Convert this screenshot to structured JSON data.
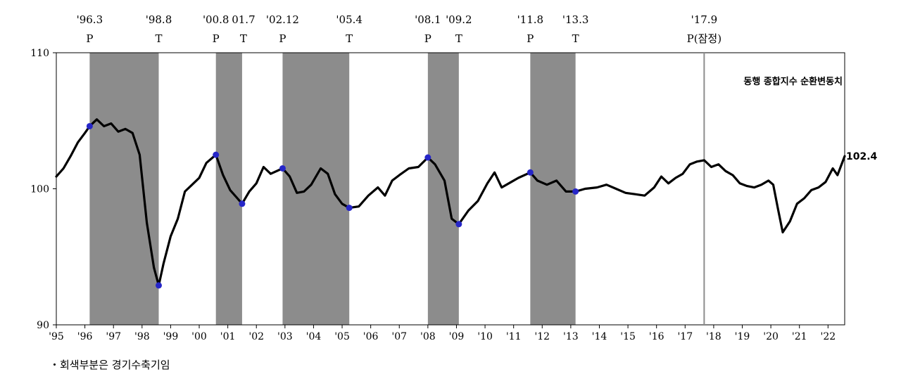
{
  "chart_data": {
    "type": "line",
    "ylim": [
      90,
      110
    ],
    "yticks": [
      "110",
      "100",
      "90"
    ],
    "x_range": [
      "1995-01",
      "2022-08"
    ],
    "xticks": [
      "'95",
      "'96",
      "'97",
      "'98",
      "'99",
      "'00",
      "'01",
      "'02",
      "'03",
      "'04",
      "'05",
      "'06",
      "'07",
      "'08",
      "'09",
      "'10",
      "'11",
      "'12",
      "'13",
      "'14",
      "'15",
      "'16",
      "'17",
      "'18",
      "'19",
      "'20",
      "'21",
      "'22"
    ],
    "series": [
      {
        "name": "동행 종합지수 순환변동치",
        "last_value_label": "102.4",
        "points": [
          [
            "1995-01",
            100.9
          ],
          [
            "1995-04",
            101.5
          ],
          [
            "1995-07",
            102.4
          ],
          [
            "1995-10",
            103.4
          ],
          [
            "1996-01",
            104.1
          ],
          [
            "1996-03",
            104.6
          ],
          [
            "1996-06",
            105.1
          ],
          [
            "1996-09",
            104.6
          ],
          [
            "1996-12",
            104.8
          ],
          [
            "1997-03",
            104.2
          ],
          [
            "1997-06",
            104.4
          ],
          [
            "1997-09",
            104.1
          ],
          [
            "1997-12",
            102.5
          ],
          [
            "1998-03",
            97.5
          ],
          [
            "1998-06",
            94.2
          ],
          [
            "1998-08",
            92.9
          ],
          [
            "1998-10",
            94.5
          ],
          [
            "1999-01",
            96.5
          ],
          [
            "1999-04",
            97.8
          ],
          [
            "1999-07",
            99.8
          ],
          [
            "1999-10",
            100.3
          ],
          [
            "2000-01",
            100.8
          ],
          [
            "2000-04",
            101.9
          ],
          [
            "2000-08",
            102.5
          ],
          [
            "2000-11",
            101.0
          ],
          [
            "2001-02",
            99.9
          ],
          [
            "2001-05",
            99.3
          ],
          [
            "2001-07",
            98.9
          ],
          [
            "2001-10",
            99.8
          ],
          [
            "2002-01",
            100.4
          ],
          [
            "2002-04",
            101.6
          ],
          [
            "2002-07",
            101.1
          ],
          [
            "2002-12",
            101.5
          ],
          [
            "2003-03",
            100.9
          ],
          [
            "2003-06",
            99.7
          ],
          [
            "2003-09",
            99.8
          ],
          [
            "2003-12",
            100.3
          ],
          [
            "2004-04",
            101.5
          ],
          [
            "2004-07",
            101.1
          ],
          [
            "2004-10",
            99.6
          ],
          [
            "2005-01",
            98.9
          ],
          [
            "2005-04",
            98.6
          ],
          [
            "2005-08",
            98.7
          ],
          [
            "2005-12",
            99.5
          ],
          [
            "2006-04",
            100.1
          ],
          [
            "2006-07",
            99.5
          ],
          [
            "2006-10",
            100.6
          ],
          [
            "2007-01",
            101.0
          ],
          [
            "2007-05",
            101.5
          ],
          [
            "2007-09",
            101.6
          ],
          [
            "2008-01",
            102.3
          ],
          [
            "2008-04",
            101.8
          ],
          [
            "2008-08",
            100.6
          ],
          [
            "2008-11",
            97.8
          ],
          [
            "2009-02",
            97.4
          ],
          [
            "2009-06",
            98.4
          ],
          [
            "2009-10",
            99.1
          ],
          [
            "2010-02",
            100.4
          ],
          [
            "2010-05",
            101.2
          ],
          [
            "2010-08",
            100.1
          ],
          [
            "2010-12",
            100.5
          ],
          [
            "2011-03",
            100.8
          ],
          [
            "2011-08",
            101.2
          ],
          [
            "2011-11",
            100.6
          ],
          [
            "2012-03",
            100.3
          ],
          [
            "2012-07",
            100.6
          ],
          [
            "2012-11",
            99.8
          ],
          [
            "2013-03",
            99.8
          ],
          [
            "2013-07",
            100.0
          ],
          [
            "2013-12",
            100.1
          ],
          [
            "2014-04",
            100.3
          ],
          [
            "2014-08",
            100.0
          ],
          [
            "2014-12",
            99.7
          ],
          [
            "2015-04",
            99.6
          ],
          [
            "2015-08",
            99.5
          ],
          [
            "2015-12",
            100.1
          ],
          [
            "2016-03",
            100.9
          ],
          [
            "2016-06",
            100.4
          ],
          [
            "2016-09",
            100.8
          ],
          [
            "2016-12",
            101.1
          ],
          [
            "2017-03",
            101.8
          ],
          [
            "2017-06",
            102.0
          ],
          [
            "2017-09",
            102.1
          ],
          [
            "2017-12",
            101.6
          ],
          [
            "2018-03",
            101.8
          ],
          [
            "2018-06",
            101.3
          ],
          [
            "2018-09",
            101.0
          ],
          [
            "2018-12",
            100.4
          ],
          [
            "2019-03",
            100.2
          ],
          [
            "2019-06",
            100.1
          ],
          [
            "2019-09",
            100.3
          ],
          [
            "2019-12",
            100.6
          ],
          [
            "2020-02",
            100.3
          ],
          [
            "2020-04",
            98.5
          ],
          [
            "2020-06",
            96.8
          ],
          [
            "2020-09",
            97.6
          ],
          [
            "2020-12",
            98.9
          ],
          [
            "2021-03",
            99.3
          ],
          [
            "2021-06",
            99.9
          ],
          [
            "2021-09",
            100.1
          ],
          [
            "2021-12",
            100.5
          ],
          [
            "2022-03",
            101.5
          ],
          [
            "2022-05",
            101.0
          ],
          [
            "2022-08",
            102.4
          ]
        ]
      }
    ],
    "recession_shading": [
      [
        "1996-03",
        "1998-08"
      ],
      [
        "2000-08",
        "2001-07"
      ],
      [
        "2002-12",
        "2005-04"
      ],
      [
        "2008-01",
        "2009-02"
      ],
      [
        "2011-08",
        "2013-03"
      ]
    ],
    "turning_points": [
      {
        "date": "1996-03",
        "value": 104.6
      },
      {
        "date": "1998-08",
        "value": 92.9
      },
      {
        "date": "2000-08",
        "value": 102.5
      },
      {
        "date": "2001-07",
        "value": 98.9
      },
      {
        "date": "2002-12",
        "value": 101.5
      },
      {
        "date": "2005-04",
        "value": 98.6
      },
      {
        "date": "2008-01",
        "value": 102.3
      },
      {
        "date": "2009-02",
        "value": 97.4
      },
      {
        "date": "2011-08",
        "value": 101.2
      },
      {
        "date": "2013-03",
        "value": 99.8
      }
    ],
    "vertical_line": {
      "date": "2017-09"
    },
    "annotations": [
      {
        "date": "1996-03",
        "label": "'96.3",
        "mark": "P"
      },
      {
        "date": "1998-08",
        "label": "'98.8",
        "mark": "T"
      },
      {
        "date": "2000-08",
        "label": "'00.8",
        "mark": "P"
      },
      {
        "date": "2001-07",
        "label": "01.7",
        "mark": "T"
      },
      {
        "date": "2002-12",
        "label": "'02.12",
        "mark": "P"
      },
      {
        "date": "2005-04",
        "label": "'05.4",
        "mark": "T"
      },
      {
        "date": "2008-01",
        "label": "'08.1",
        "mark": "P"
      },
      {
        "date": "2009-02",
        "label": "'09.2",
        "mark": "T"
      },
      {
        "date": "2011-08",
        "label": "'11.8",
        "mark": "P"
      },
      {
        "date": "2013-03",
        "label": "'13.3",
        "mark": "T"
      },
      {
        "date": "2017-09",
        "label": "'17.9",
        "mark": "P(잠정)"
      }
    ],
    "colors": {
      "line": "#000000",
      "shade": "#8c8c8c",
      "points": "#2626c8",
      "vline": "#8c8c8c"
    }
  },
  "footnote": "・회색부분은 경기수축기임"
}
